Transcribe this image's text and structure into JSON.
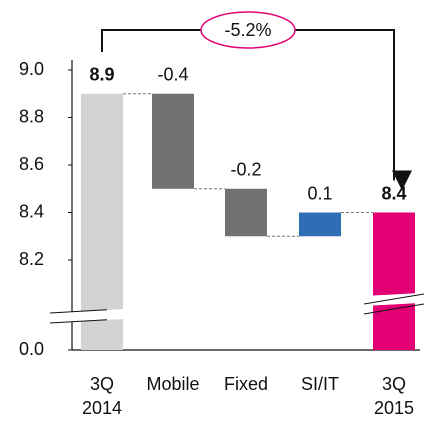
{
  "chart_data": {
    "type": "waterfall",
    "categories": [
      "3Q 2014",
      "Mobile",
      "Fixed",
      "SI/IT",
      "3Q 2015"
    ],
    "values": [
      8.9,
      -0.4,
      -0.2,
      0.1,
      8.4
    ],
    "measure": [
      "absolute",
      "relative",
      "relative",
      "relative",
      "total"
    ],
    "colors": [
      "#d3d3d3",
      "#717171",
      "#717171",
      "#2f6db5",
      "#e20074"
    ],
    "ylim": [
      0,
      9.0
    ],
    "ybreak": [
      0.1,
      8.1
    ],
    "yticks": [
      {
        "value": 0,
        "label": "0.0"
      },
      {
        "value": 8.2,
        "label": "8.2"
      },
      {
        "value": 8.4,
        "label": "8.4"
      },
      {
        "value": 8.6,
        "label": "8.6"
      },
      {
        "value": 8.8,
        "label": "8.8"
      },
      {
        "value": 9.0,
        "label": "9.0"
      }
    ],
    "annotation": "-5.2%"
  }
}
